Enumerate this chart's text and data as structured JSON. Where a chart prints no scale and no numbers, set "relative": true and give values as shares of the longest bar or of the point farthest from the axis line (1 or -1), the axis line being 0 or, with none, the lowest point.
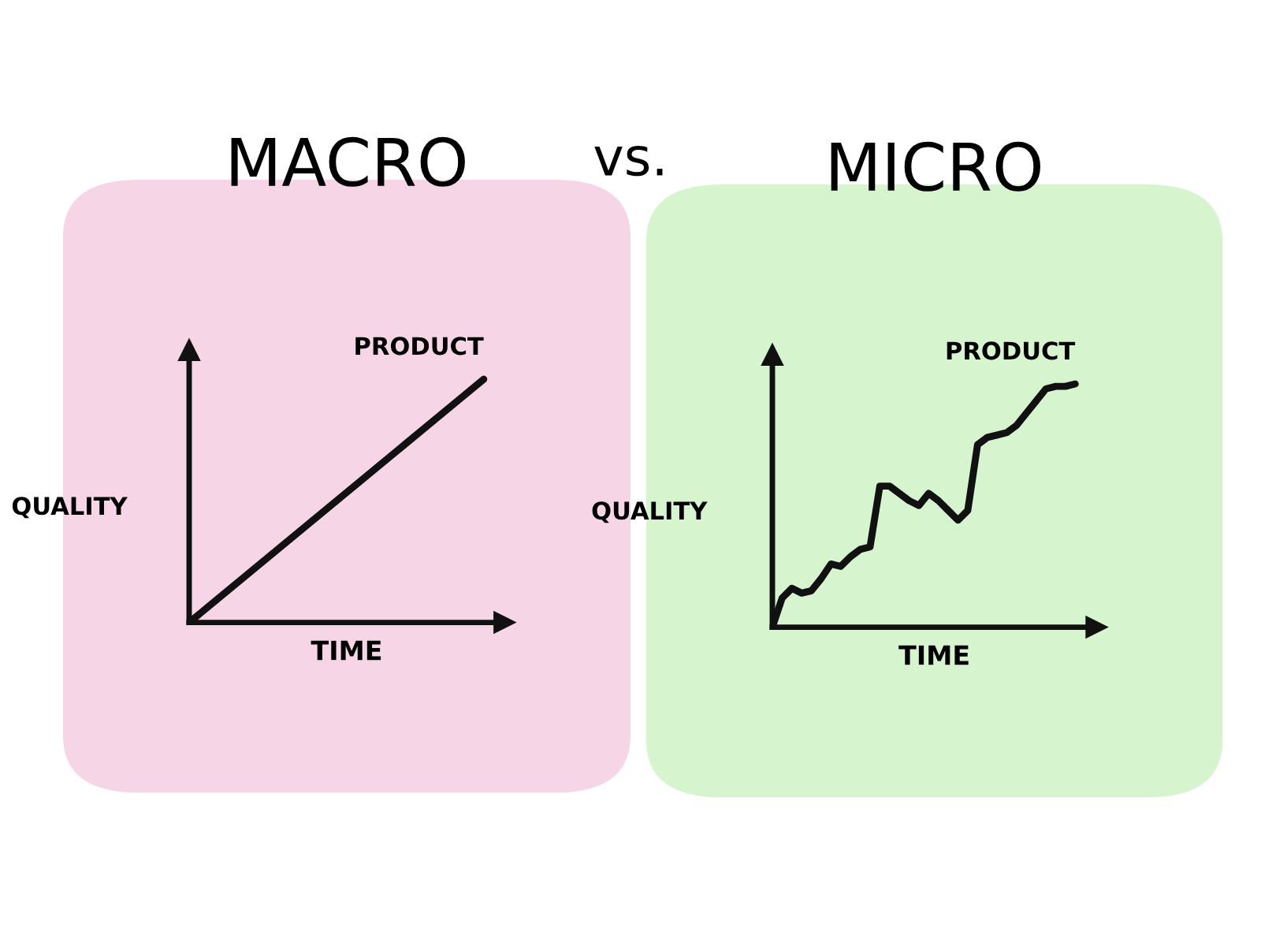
{
  "chart_data": [
    {
      "type": "line",
      "title": "MACRO",
      "xlabel": "TIME",
      "ylabel": "QUALITY",
      "relative": true,
      "tick_labels": false,
      "legend": false,
      "marker": "none",
      "line_style": "solid",
      "annotations": [
        "vs."
      ],
      "categories": [
        null,
        null
      ],
      "series": [
        {
          "name": "PRODUCT",
          "color": "#111111",
          "values": [
            0,
            1
          ]
        }
      ]
    },
    {
      "type": "line",
      "title": "MICRO",
      "xlabel": "TIME",
      "ylabel": "QUALITY",
      "relative": true,
      "tick_labels": false,
      "legend": false,
      "marker": "none",
      "line_style": "solid",
      "categories": [
        null,
        null,
        null,
        null,
        null,
        null,
        null,
        null,
        null,
        null,
        null,
        null,
        null,
        null,
        null,
        null,
        null,
        null,
        null,
        null,
        null,
        null,
        null,
        null,
        null,
        null,
        null,
        null,
        null,
        null,
        null,
        null
      ],
      "series": [
        {
          "name": "PRODUCT",
          "color": "#111111",
          "values": [
            0,
            0.12,
            0.16,
            0.14,
            0.15,
            0.2,
            0.26,
            0.25,
            0.29,
            0.32,
            0.33,
            0.58,
            0.58,
            0.55,
            0.52,
            0.5,
            0.55,
            0.52,
            0.48,
            0.44,
            0.48,
            0.75,
            0.78,
            0.79,
            0.8,
            0.83,
            0.88,
            0.93,
            0.98,
            0.99,
            0.99,
            1
          ]
        }
      ]
    }
  ]
}
